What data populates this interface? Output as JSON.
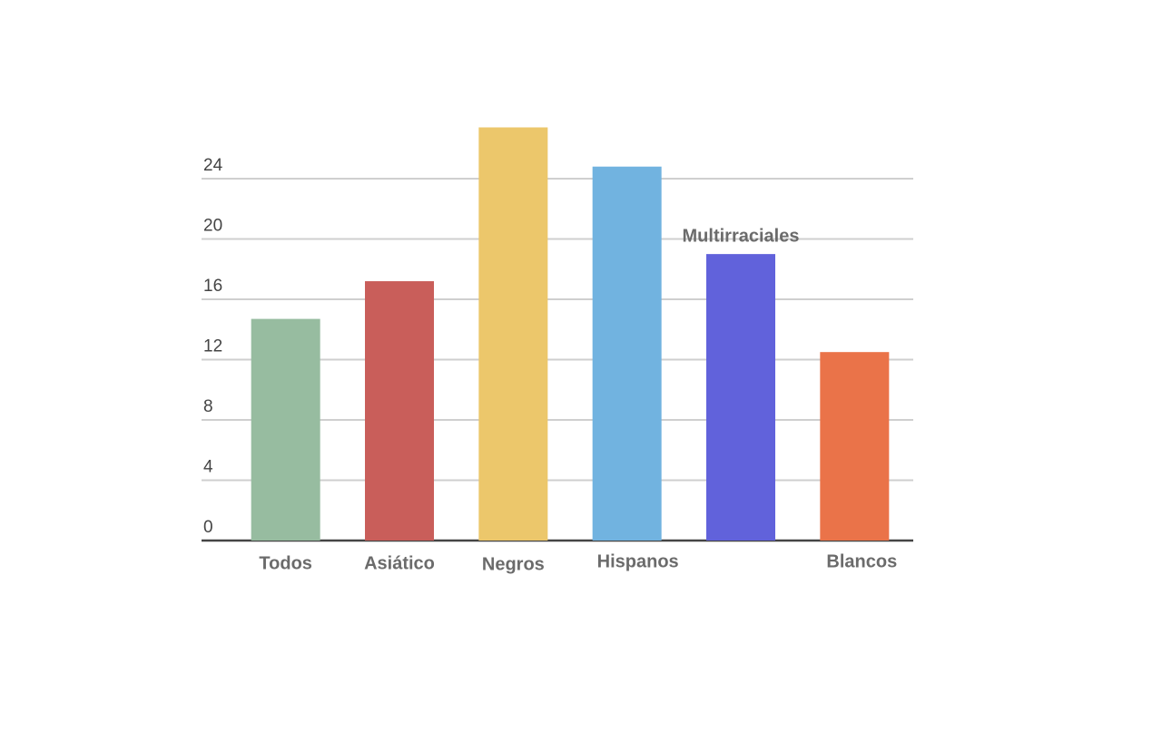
{
  "chart_data": {
    "type": "bar",
    "categories": [
      "Todos",
      "Asiático",
      "Negros",
      "Hispanos",
      "Multirraciales",
      "Blancos"
    ],
    "values": [
      14.7,
      17.2,
      27.4,
      24.8,
      19.0,
      12.5
    ],
    "colors": [
      "#97bca0",
      "#c95e5a",
      "#ecc76b",
      "#71b3e0",
      "#6162db",
      "#ea7349"
    ],
    "ylim": [
      0,
      28
    ],
    "yticks": [
      0,
      4,
      8,
      12,
      16,
      20,
      24
    ],
    "grid": true
  }
}
